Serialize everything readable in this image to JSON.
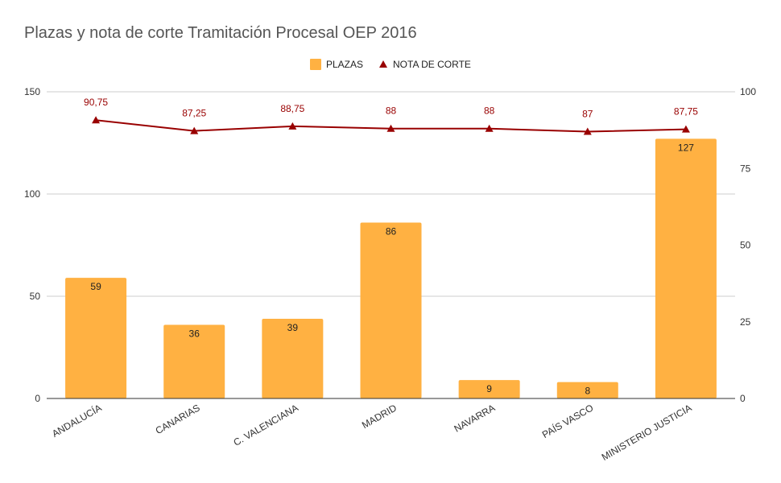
{
  "chart_data": {
    "title": "Plazas y nota de corte Tramitación Procesal OEP 2016",
    "type": "bar",
    "categories": [
      "ANDALUCÍA",
      "CANARIAS",
      "C. VALENCIANA",
      "MADRID",
      "NAVARRA",
      "PAÍS VASCO",
      "MINISTERIO JUSTICIA"
    ],
    "series": [
      {
        "name": "PLAZAS",
        "type": "bar",
        "axis": "left",
        "color": "#ffb142",
        "values": [
          59,
          36,
          39,
          86,
          9,
          8,
          127
        ],
        "labels": [
          "59",
          "36",
          "39",
          "86",
          "9",
          "8",
          "127"
        ]
      },
      {
        "name": "NOTA DE CORTE",
        "type": "line",
        "axis": "right",
        "color": "#990000",
        "values": [
          90.75,
          87.25,
          88.75,
          88,
          88,
          87,
          87.75
        ],
        "labels": [
          "90,75",
          "87,25",
          "88,75",
          "88",
          "88",
          "87",
          "87,75"
        ]
      }
    ],
    "y_left": {
      "min": 0,
      "max": 150,
      "ticks": [
        0,
        50,
        100,
        150
      ],
      "tick_labels": [
        "0",
        "50",
        "100",
        "150"
      ]
    },
    "y_right": {
      "min": 0,
      "max": 100,
      "ticks": [
        0,
        25,
        50,
        75,
        100
      ],
      "tick_labels": [
        "0",
        "25",
        "50",
        "75",
        "100"
      ]
    },
    "legend_position": "top-center",
    "grid": true
  }
}
